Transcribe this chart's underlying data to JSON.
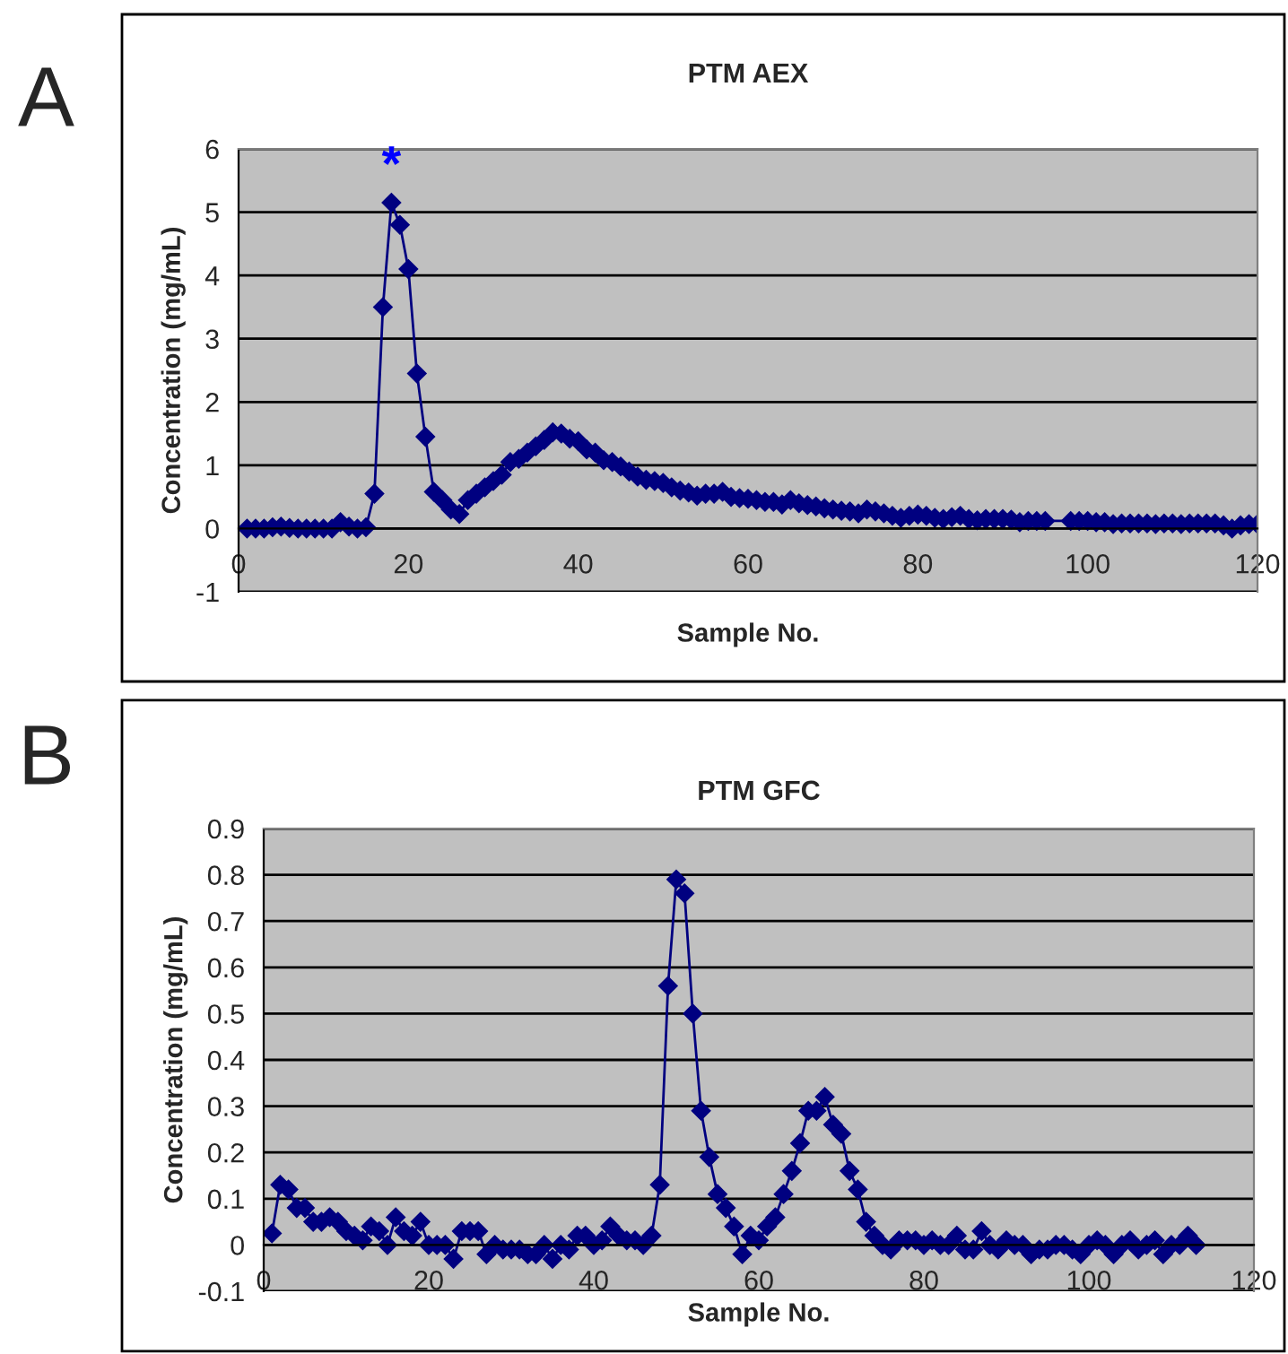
{
  "chart_data": [
    {
      "type": "line",
      "title": "PTM AEX",
      "xlabel": "Sample No.",
      "ylabel": "Concentration (mg/mL)",
      "annotations": [
        "A",
        {
          "text": "*",
          "x": 18,
          "y": 5.15
        }
      ],
      "x": [
        1,
        2,
        3,
        4,
        5,
        6,
        7,
        8,
        9,
        10,
        11,
        12,
        13,
        14,
        15,
        16,
        17,
        18,
        19,
        20,
        21,
        22,
        23,
        24,
        25,
        26,
        27,
        28,
        29,
        30,
        31,
        32,
        33,
        34,
        35,
        36,
        37,
        38,
        39,
        40,
        41,
        42,
        43,
        44,
        45,
        46,
        47,
        48,
        49,
        50,
        51,
        52,
        53,
        54,
        55,
        56,
        57,
        58,
        59,
        60,
        61,
        62,
        63,
        64,
        65,
        66,
        67,
        68,
        69,
        70,
        71,
        72,
        73,
        74,
        75,
        76,
        77,
        78,
        79,
        80,
        81,
        82,
        83,
        84,
        85,
        86,
        87,
        88,
        89,
        90,
        91,
        92,
        93,
        94,
        95,
        98,
        99,
        100,
        101,
        102,
        103,
        104,
        105,
        106,
        107,
        108,
        109,
        110,
        111,
        112,
        113,
        114,
        115,
        116,
        117,
        118,
        119,
        120
      ],
      "series": [
        {
          "color": "#000080",
          "values": [
            0,
            0,
            0,
            0.02,
            0.03,
            0.01,
            0,
            0,
            0,
            0,
            0,
            0.1,
            0.03,
            0,
            0.02,
            0.55,
            3.5,
            5.15,
            4.8,
            4.1,
            2.45,
            1.45,
            0.58,
            0.45,
            0.3,
            0.23,
            0.45,
            0.55,
            0.65,
            0.75,
            0.85,
            1.05,
            1.1,
            1.2,
            1.3,
            1.4,
            1.52,
            1.5,
            1.42,
            1.38,
            1.25,
            1.2,
            1.08,
            1.05,
            0.98,
            0.9,
            0.82,
            0.77,
            0.75,
            0.72,
            0.65,
            0.6,
            0.57,
            0.52,
            0.55,
            0.55,
            0.58,
            0.5,
            0.48,
            0.47,
            0.45,
            0.42,
            0.42,
            0.38,
            0.45,
            0.4,
            0.37,
            0.35,
            0.32,
            0.3,
            0.28,
            0.27,
            0.24,
            0.3,
            0.27,
            0.24,
            0.2,
            0.17,
            0.2,
            0.22,
            0.2,
            0.17,
            0.15,
            0.18,
            0.2,
            0.15,
            0.13,
            0.15,
            0.15,
            0.15,
            0.14,
            0.1,
            0.12,
            0.12,
            0.12,
            0.12,
            0.12,
            0.12,
            0.1,
            0.1,
            0.07,
            0.08,
            0.08,
            0.08,
            0.08,
            0.07,
            0.08,
            0.08,
            0.07,
            0.08,
            0.08,
            0.08,
            0.08,
            0.05,
            0,
            0.05,
            0.07,
            0.07
          ]
        }
      ],
      "xlim": [
        0,
        120
      ],
      "xticks": [
        0,
        20,
        40,
        60,
        80,
        100,
        120
      ],
      "ylim": [
        -1,
        6
      ],
      "yticks": [
        -1,
        0,
        1,
        2,
        3,
        4,
        5,
        6
      ],
      "grid": "y",
      "legend": false,
      "marker": "diamond",
      "line_style": "solid"
    },
    {
      "type": "line",
      "title": "PTM GFC",
      "xlabel": "Sample No.",
      "ylabel": "Concentration (mg/mL)",
      "annotations": [
        "B"
      ],
      "x": [
        1,
        2,
        3,
        4,
        5,
        6,
        7,
        8,
        9,
        10,
        11,
        12,
        13,
        14,
        15,
        16,
        17,
        18,
        19,
        20,
        21,
        22,
        23,
        24,
        25,
        26,
        27,
        28,
        29,
        30,
        31,
        32,
        33,
        34,
        35,
        36,
        37,
        38,
        39,
        40,
        41,
        42,
        43,
        44,
        45,
        46,
        47,
        48,
        49,
        50,
        51,
        52,
        53,
        54,
        55,
        56,
        57,
        58,
        59,
        60,
        61,
        62,
        63,
        64,
        65,
        66,
        67,
        68,
        69,
        70,
        71,
        72,
        73,
        74,
        75,
        76,
        77,
        78,
        79,
        80,
        81,
        82,
        83,
        84,
        85,
        86,
        87,
        88,
        89,
        90,
        91,
        92,
        93,
        94,
        95,
        96,
        97,
        98,
        99,
        100,
        101,
        102,
        103,
        104,
        105,
        106,
        107,
        108,
        109,
        110,
        111,
        112,
        113
      ],
      "series": [
        {
          "color": "#000080",
          "values": [
            0.025,
            0.13,
            0.12,
            0.08,
            0.08,
            0.05,
            0.05,
            0.06,
            0.05,
            0.03,
            0.02,
            0.01,
            0.04,
            0.03,
            0,
            0.06,
            0.03,
            0.02,
            0.05,
            0,
            0,
            0,
            -0.03,
            0.03,
            0.03,
            0.03,
            -0.02,
            0,
            -0.01,
            -0.01,
            -0.01,
            -0.02,
            -0.02,
            0,
            -0.03,
            0,
            -0.01,
            0.02,
            0.02,
            0,
            0.01,
            0.04,
            0.02,
            0.01,
            0.01,
            0,
            0.02,
            0.13,
            0.56,
            0.79,
            0.76,
            0.5,
            0.29,
            0.19,
            0.11,
            0.08,
            0.04,
            -0.02,
            0.02,
            0.01,
            0.04,
            0.06,
            0.11,
            0.16,
            0.22,
            0.29,
            0.29,
            0.32,
            0.26,
            0.24,
            0.16,
            0.12,
            0.05,
            0.02,
            0,
            -0.01,
            0.01,
            0.01,
            0.01,
            0,
            0.01,
            0,
            0,
            0.02,
            -0.01,
            -0.01,
            0.03,
            0,
            -0.01,
            0.01,
            0,
            0,
            -0.02,
            -0.01,
            -0.01,
            0,
            0,
            -0.01,
            -0.02,
            0,
            0.01,
            0,
            -0.02,
            0,
            0.01,
            -0.01,
            0,
            0.01,
            -0.02,
            0,
            0,
            0.02,
            0
          ]
        }
      ],
      "xlim": [
        0,
        120
      ],
      "xticks": [
        0,
        20,
        40,
        60,
        80,
        100,
        120
      ],
      "ylim": [
        -0.1,
        0.9
      ],
      "yticks": [
        -0.1,
        0,
        0.1,
        0.2,
        0.3,
        0.4,
        0.5,
        0.6,
        0.7,
        0.8,
        0.9
      ],
      "grid": "y",
      "legend": false,
      "marker": "diamond",
      "line_style": "solid"
    }
  ]
}
